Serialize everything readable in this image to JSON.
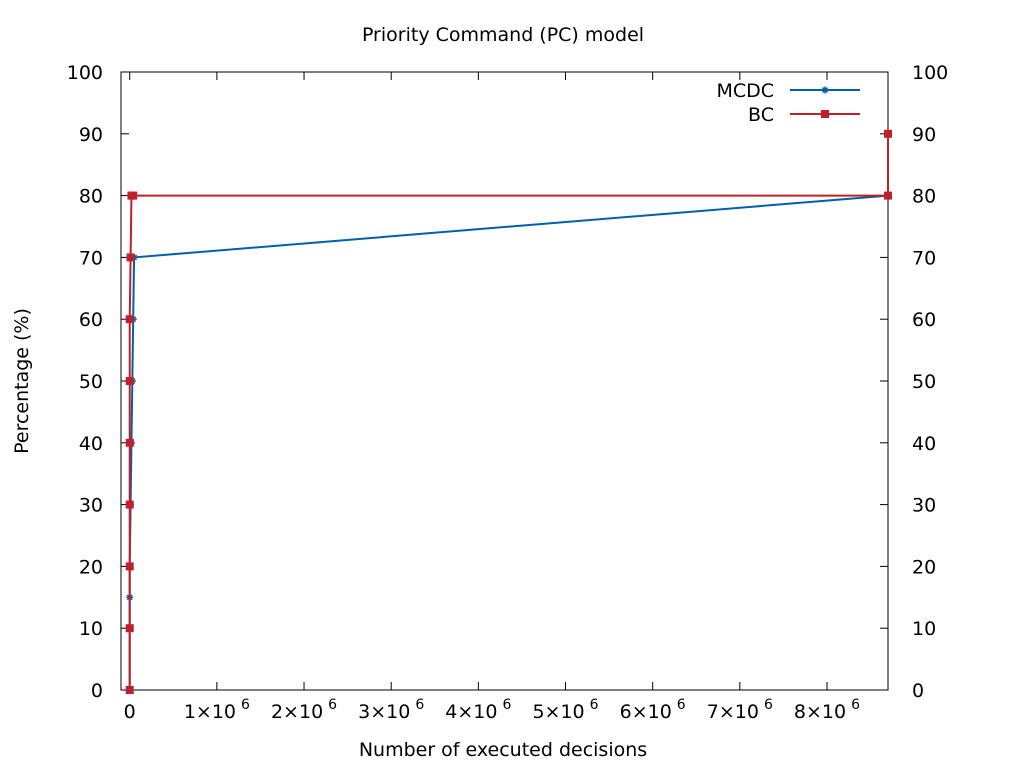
{
  "chart_data": {
    "type": "line",
    "title": "Priority Command (PC) model",
    "xlabel": "Number of executed decisions",
    "ylabel": "Percentage (%)",
    "xlim": [
      -100000,
      8700000
    ],
    "ylim": [
      0,
      100
    ],
    "y_ticks": [
      0,
      10,
      20,
      30,
      40,
      50,
      60,
      70,
      80,
      90,
      100
    ],
    "y_tick_labels": [
      "0",
      "10",
      "20",
      "30",
      "40",
      "50",
      "60",
      "70",
      "80",
      "90",
      "100"
    ],
    "x_ticks": [
      {
        "value": 0,
        "mantissa": "0",
        "exponent": ""
      },
      {
        "value": 1000000,
        "mantissa": "1×10",
        "exponent": "6"
      },
      {
        "value": 2000000,
        "mantissa": "2×10",
        "exponent": "6"
      },
      {
        "value": 3000000,
        "mantissa": "3×10",
        "exponent": "6"
      },
      {
        "value": 4000000,
        "mantissa": "4×10",
        "exponent": "6"
      },
      {
        "value": 5000000,
        "mantissa": "5×10",
        "exponent": "6"
      },
      {
        "value": 6000000,
        "mantissa": "6×10",
        "exponent": "6"
      },
      {
        "value": 7000000,
        "mantissa": "7×10",
        "exponent": "6"
      },
      {
        "value": 8000000,
        "mantissa": "8×10",
        "exponent": "6"
      }
    ],
    "mirror_right_axis": true,
    "grid": false,
    "legend_position": "top-right",
    "series": [
      {
        "name": "MCDC",
        "color": "#0060ad",
        "marker": "star",
        "points": [
          [
            -100,
            0
          ],
          [
            -50,
            10
          ],
          [
            -20,
            15
          ],
          [
            0,
            20
          ],
          [
            10000,
            30
          ],
          [
            20000,
            40
          ],
          [
            30000,
            50
          ],
          [
            40000,
            60
          ],
          [
            50000,
            70
          ],
          [
            8700000,
            80
          ]
        ]
      },
      {
        "name": "BC",
        "color": "#c0202a",
        "marker": "square",
        "points": [
          [
            -100,
            0
          ],
          [
            -80,
            10
          ],
          [
            -60,
            20
          ],
          [
            -40,
            30
          ],
          [
            -20,
            40
          ],
          [
            0,
            50
          ],
          [
            0,
            60
          ],
          [
            10000,
            70
          ],
          [
            20000,
            80
          ],
          [
            40000,
            80
          ],
          [
            8700000,
            80
          ],
          [
            8700000,
            90
          ]
        ]
      }
    ]
  }
}
